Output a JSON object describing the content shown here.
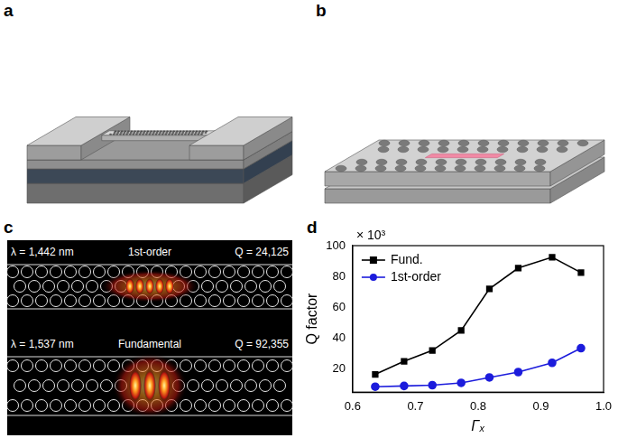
{
  "panel_labels": [
    "a",
    "b",
    "c",
    "d"
  ],
  "panel_c": {
    "modes": [
      {
        "wavelength": "λ = 1,442 nm",
        "name": "1st-order",
        "q": "Q = 24,125"
      },
      {
        "wavelength": "λ = 1,537 nm",
        "name": "Fundamental",
        "q": "Q = 92,355"
      }
    ]
  },
  "chart_data": {
    "type": "line",
    "x_label": "Γₓ",
    "y_label": "Q factor",
    "y_multiplier": "× 10³",
    "x": [
      0.636,
      0.682,
      0.727,
      0.773,
      0.818,
      0.864,
      0.918,
      0.964
    ],
    "series": [
      {
        "name": "Fund.",
        "color": "#000000",
        "marker": "square",
        "values": [
          16.5,
          25,
          32,
          45,
          72,
          85.5,
          92.5,
          82.5
        ]
      },
      {
        "name": "1st-order",
        "color": "#1c1cdc",
        "marker": "circle",
        "values": [
          8.5,
          9,
          9.5,
          11,
          14.5,
          18,
          24,
          33.5
        ]
      }
    ],
    "xlim": [
      0.6,
      1.0
    ],
    "xticks": [
      0.6,
      0.7,
      0.8,
      0.9,
      {
        "value": 1.0,
        "label": "1.0"
      }
    ],
    "ylim": [
      5,
      100
    ],
    "yticks": [
      20,
      40,
      60,
      80,
      100
    ],
    "grid": false,
    "legend": "upper left"
  }
}
